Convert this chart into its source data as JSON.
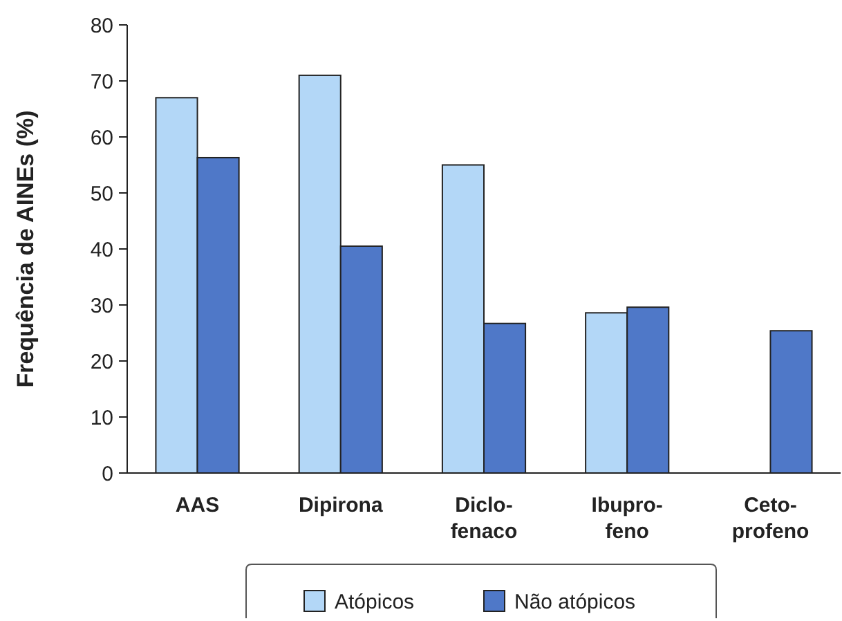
{
  "chart_data": {
    "type": "bar",
    "ylabel": "Frequência de AINEs (%)",
    "categories": [
      "AAS",
      "Dipirona",
      "Diclo-\nfenaco",
      "Ibupro-\nfeno",
      "Ceto-\nprofeno"
    ],
    "series": [
      {
        "name": "Atópicos",
        "color": "#b3d7f7",
        "values": [
          67,
          71,
          55,
          28.6,
          null
        ]
      },
      {
        "name": "Não atópicos",
        "color": "#4f78c8",
        "values": [
          56.3,
          40.5,
          26.7,
          29.6,
          25.4
        ]
      }
    ],
    "ylim": [
      0,
      80
    ],
    "yticks": [
      0,
      10,
      20,
      30,
      40,
      50,
      60,
      70,
      80
    ],
    "grid": false,
    "legend": "bottom"
  }
}
